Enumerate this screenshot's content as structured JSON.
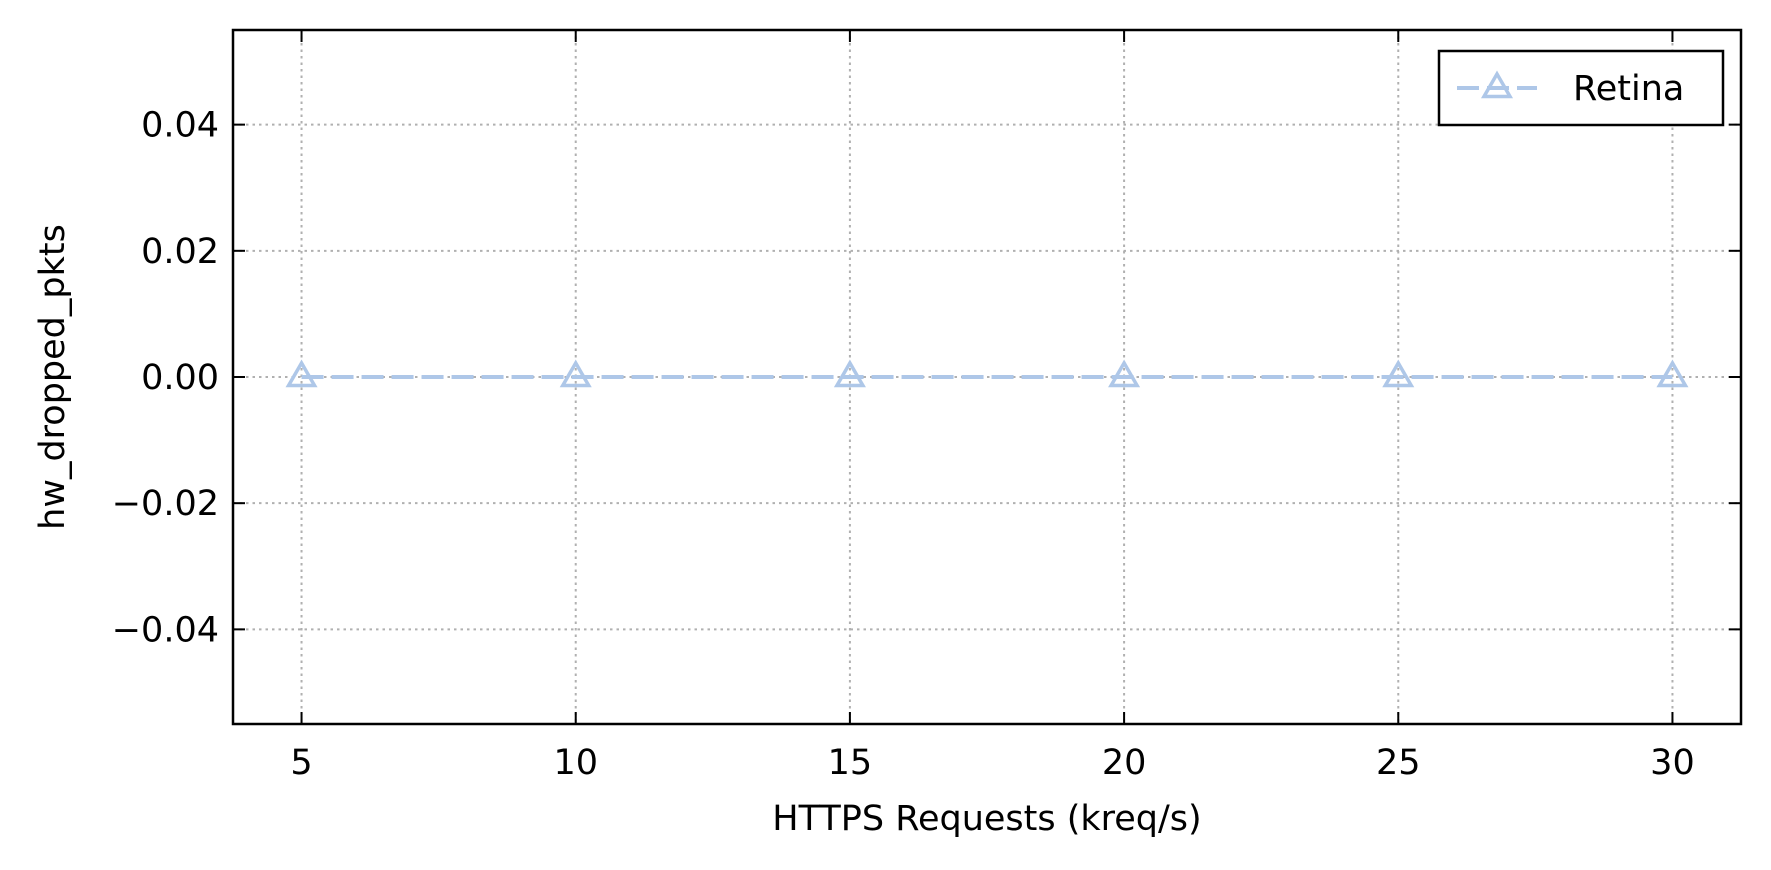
{
  "chart_data": {
    "type": "line",
    "title": "",
    "xlabel": "HTTPS Requests (kreq/s)",
    "ylabel": "hw_dropped_pkts",
    "x": [
      5,
      10,
      15,
      20,
      25,
      30
    ],
    "xlim": [
      3.75,
      31.25
    ],
    "ylim": [
      -0.055,
      0.055
    ],
    "x_ticks": [
      5,
      10,
      15,
      20,
      25,
      30
    ],
    "x_tick_labels": [
      "5",
      "10",
      "15",
      "20",
      "25",
      "30"
    ],
    "y_ticks": [
      -0.04,
      -0.02,
      0.0,
      0.02,
      0.04
    ],
    "y_tick_labels": [
      "−0.04",
      "−0.02",
      "0.00",
      "0.02",
      "0.04"
    ],
    "grid": true,
    "legend_position": "top-right",
    "series": [
      {
        "name": "Retina",
        "values": [
          0,
          0,
          0,
          0,
          0,
          0
        ],
        "color": "#aec7e8",
        "marker": "triangle-open",
        "line_style": "dashed"
      }
    ]
  }
}
